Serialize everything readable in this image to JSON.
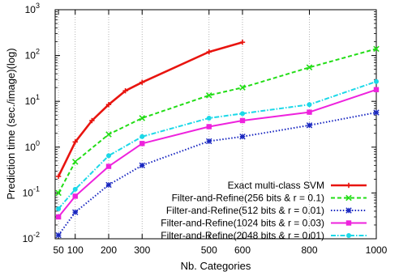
{
  "chart_data": {
    "type": "line",
    "title": "",
    "xlabel": "Nb. Categories",
    "ylabel": "Prediction time (sec./image)(log)",
    "x_ticks": [
      50,
      100,
      200,
      300,
      500,
      600,
      800,
      1000
    ],
    "xlim": [
      40,
      1000
    ],
    "ylim": [
      0.01,
      1000
    ],
    "y_scale": "log",
    "y_tick_labels": [
      {
        "base": "10",
        "exp": "-2",
        "value": 0.01
      },
      {
        "base": "10",
        "exp": "-1",
        "value": 0.1
      },
      {
        "base": "10",
        "exp": "0",
        "value": 1
      },
      {
        "base": "10",
        "exp": "1",
        "value": 10
      },
      {
        "base": "10",
        "exp": "2",
        "value": 100
      },
      {
        "base": "10",
        "exp": "3",
        "value": 1000
      }
    ],
    "vertical_grid_at": [
      50,
      100,
      200,
      300,
      500,
      600,
      800
    ],
    "legend_position": "bottom-right",
    "series": [
      {
        "name": "Exact multi-class SVM",
        "color": "#e8140f",
        "dash": "solid",
        "marker": "plus",
        "x": [
          50,
          100,
          150,
          200,
          250,
          300,
          500,
          600
        ],
        "y": [
          0.23,
          1.3,
          3.8,
          8.5,
          17,
          26,
          120,
          195
        ]
      },
      {
        "name": "Filter-and-Refine(256 bits & r = 0.1)",
        "color": "#22dd16",
        "dash": "dashed",
        "marker": "x",
        "x": [
          50,
          100,
          200,
          300,
          500,
          600,
          800,
          1000
        ],
        "y": [
          0.1,
          0.48,
          1.9,
          4.3,
          13.5,
          20,
          55,
          140
        ]
      },
      {
        "name": "Filter-and-Refine(512 bits & r = 0.01)",
        "color": "#1826c0",
        "dash": "dotted",
        "marker": "star",
        "x": [
          50,
          100,
          200,
          300,
          500,
          600,
          800,
          1000
        ],
        "y": [
          0.012,
          0.038,
          0.15,
          0.4,
          1.35,
          1.7,
          3.0,
          5.7
        ]
      },
      {
        "name": "Filter-and-Refine(1024 bits & r = 0.03)",
        "color": "#ee22dd",
        "dash": "solid",
        "marker": "square",
        "x": [
          50,
          100,
          200,
          300,
          500,
          600,
          800,
          1000
        ],
        "y": [
          0.03,
          0.085,
          0.38,
          1.2,
          2.8,
          3.8,
          5.8,
          18
        ]
      },
      {
        "name": "Filter-and-Refine(2048 bits & r = 0.01)",
        "color": "#1bd8e8",
        "dash": "dashdot",
        "marker": "circle",
        "x": [
          50,
          100,
          200,
          300,
          500,
          600,
          800,
          1000
        ],
        "y": [
          0.045,
          0.12,
          0.65,
          1.7,
          4.3,
          5.4,
          8.5,
          27
        ]
      }
    ]
  }
}
